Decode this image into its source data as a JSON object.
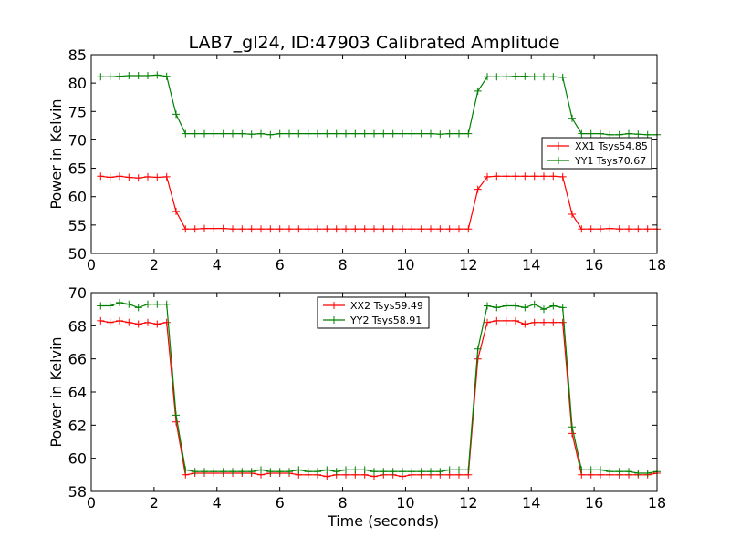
{
  "chart_data": [
    {
      "type": "line",
      "title": "LAB7_gl24, ID:47903 Calibrated Amplitude",
      "xlabel": "",
      "ylabel": "Power in Kelvin",
      "xlim": [
        0,
        18
      ],
      "ylim": [
        50,
        85
      ],
      "xticks": [
        "0",
        "2",
        "4",
        "6",
        "8",
        "10",
        "12",
        "14",
        "16",
        "18"
      ],
      "yticks": [
        "50",
        "55",
        "60",
        "65",
        "70",
        "75",
        "80",
        "85"
      ],
      "grid": false,
      "legend_position": "right",
      "x": [
        0.3,
        0.6,
        0.9,
        1.2,
        1.5,
        1.8,
        2.1,
        2.4,
        2.7,
        3.0,
        3.3,
        3.6,
        3.9,
        4.2,
        4.5,
        4.8,
        5.1,
        5.4,
        5.7,
        6.0,
        6.3,
        6.6,
        6.9,
        7.2,
        7.5,
        7.8,
        8.1,
        8.4,
        8.7,
        9.0,
        9.3,
        9.6,
        9.9,
        10.2,
        10.5,
        10.8,
        11.1,
        11.4,
        11.7,
        12.0,
        12.3,
        12.6,
        12.9,
        13.2,
        13.5,
        13.8,
        14.1,
        14.4,
        14.7,
        15.0,
        15.3,
        15.6,
        15.9,
        16.2,
        16.5,
        16.8,
        17.1,
        17.4,
        17.7,
        18.0
      ],
      "series": [
        {
          "name": "XX1 Tsys54.85",
          "color": "#ff0000",
          "values": [
            63.6,
            63.4,
            63.6,
            63.4,
            63.3,
            63.5,
            63.4,
            63.5,
            57.4,
            54.3,
            54.3,
            54.4,
            54.4,
            54.4,
            54.3,
            54.3,
            54.3,
            54.3,
            54.3,
            54.3,
            54.3,
            54.3,
            54.3,
            54.3,
            54.3,
            54.3,
            54.3,
            54.3,
            54.3,
            54.3,
            54.3,
            54.3,
            54.3,
            54.3,
            54.3,
            54.3,
            54.3,
            54.3,
            54.3,
            54.3,
            61.3,
            63.5,
            63.6,
            63.6,
            63.6,
            63.6,
            63.6,
            63.6,
            63.6,
            63.5,
            56.9,
            54.3,
            54.3,
            54.3,
            54.4,
            54.3,
            54.3,
            54.3,
            54.3,
            54.3
          ]
        },
        {
          "name": "YY1 Tsys70.67",
          "color": "#008000",
          "values": [
            81.1,
            81.1,
            81.2,
            81.3,
            81.3,
            81.3,
            81.4,
            81.2,
            74.5,
            71.1,
            71.1,
            71.1,
            71.1,
            71.1,
            71.1,
            71.1,
            71.0,
            71.1,
            70.9,
            71.1,
            71.1,
            71.1,
            71.1,
            71.1,
            71.1,
            71.1,
            71.1,
            71.1,
            71.1,
            71.1,
            71.1,
            71.1,
            71.1,
            71.1,
            71.1,
            71.1,
            71.0,
            71.1,
            71.1,
            71.1,
            78.6,
            81.1,
            81.1,
            81.1,
            81.2,
            81.2,
            81.1,
            81.1,
            81.1,
            81.0,
            73.8,
            71.1,
            71.1,
            71.1,
            70.9,
            70.9,
            71.1,
            71.0,
            70.9,
            70.9
          ]
        }
      ]
    },
    {
      "type": "line",
      "title": "",
      "xlabel": "Time (seconds)",
      "ylabel": "Power in Kelvin",
      "xlim": [
        0,
        18
      ],
      "ylim": [
        58,
        70
      ],
      "xticks": [
        "0",
        "2",
        "4",
        "6",
        "8",
        "10",
        "12",
        "14",
        "16",
        "18"
      ],
      "yticks": [
        "58",
        "60",
        "62",
        "64",
        "66",
        "68",
        "70"
      ],
      "grid": false,
      "legend_position": "upper-center",
      "x": [
        0.3,
        0.6,
        0.9,
        1.2,
        1.5,
        1.8,
        2.1,
        2.4,
        2.7,
        3.0,
        3.3,
        3.6,
        3.9,
        4.2,
        4.5,
        4.8,
        5.1,
        5.4,
        5.7,
        6.0,
        6.3,
        6.6,
        6.9,
        7.2,
        7.5,
        7.8,
        8.1,
        8.4,
        8.7,
        9.0,
        9.3,
        9.6,
        9.9,
        10.2,
        10.5,
        10.8,
        11.1,
        11.4,
        11.7,
        12.0,
        12.3,
        12.6,
        12.9,
        13.2,
        13.5,
        13.8,
        14.1,
        14.4,
        14.7,
        15.0,
        15.3,
        15.6,
        15.9,
        16.2,
        16.5,
        16.8,
        17.1,
        17.4,
        17.7,
        18.0
      ],
      "series": [
        {
          "name": "XX2 Tsys59.49",
          "color": "#ff0000",
          "values": [
            68.3,
            68.2,
            68.3,
            68.2,
            68.1,
            68.2,
            68.1,
            68.2,
            62.2,
            59.0,
            59.1,
            59.1,
            59.1,
            59.1,
            59.1,
            59.1,
            59.1,
            59.0,
            59.1,
            59.1,
            59.1,
            59.0,
            59.0,
            59.0,
            58.9,
            59.0,
            59.0,
            59.0,
            59.0,
            58.9,
            59.0,
            59.0,
            58.9,
            59.0,
            59.0,
            59.0,
            59.0,
            59.0,
            59.0,
            59.0,
            66.0,
            68.2,
            68.3,
            68.3,
            68.3,
            68.1,
            68.2,
            68.2,
            68.2,
            68.2,
            61.5,
            59.0,
            59.0,
            59.0,
            59.0,
            59.0,
            59.0,
            59.0,
            59.0,
            59.1
          ]
        },
        {
          "name": "YY2 Tsys58.91",
          "color": "#008000",
          "values": [
            69.2,
            69.2,
            69.4,
            69.3,
            69.1,
            69.3,
            69.3,
            69.3,
            62.6,
            59.3,
            59.2,
            59.2,
            59.2,
            59.2,
            59.2,
            59.2,
            59.2,
            59.3,
            59.2,
            59.2,
            59.2,
            59.3,
            59.2,
            59.2,
            59.3,
            59.2,
            59.3,
            59.3,
            59.3,
            59.2,
            59.2,
            59.2,
            59.2,
            59.2,
            59.2,
            59.2,
            59.2,
            59.3,
            59.3,
            59.3,
            66.6,
            69.2,
            69.1,
            69.2,
            69.2,
            69.1,
            69.3,
            69.0,
            69.2,
            69.1,
            61.9,
            59.3,
            59.3,
            59.3,
            59.2,
            59.2,
            59.2,
            59.1,
            59.1,
            59.2
          ]
        }
      ]
    }
  ]
}
